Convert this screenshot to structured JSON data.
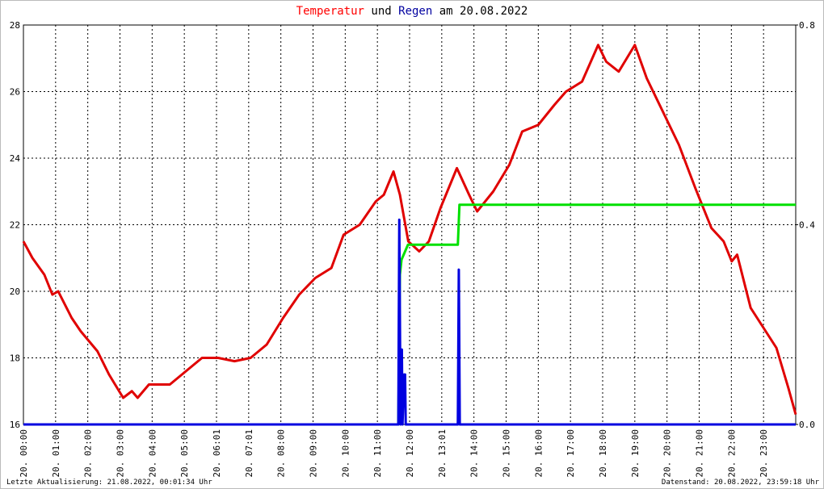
{
  "chart_data": {
    "type": "line",
    "title_parts": [
      {
        "text": "Temperatur",
        "color": "#ff0000"
      },
      {
        "text": "und",
        "color": "#000000"
      },
      {
        "text": "Regen",
        "color": "#0000a0"
      },
      {
        "text": "am 20.08.2022",
        "color": "#000000"
      }
    ],
    "footer_left": "Letzte Aktualisierung: 21.08.2022, 00:01:34 Uhr",
    "footer_right": "Datenstand: 20.08.2022, 23:59:18 Uhr",
    "xlim": [
      0,
      24
    ],
    "xticks": [
      {
        "value": 0,
        "label": "20. 00:00"
      },
      {
        "value": 1,
        "label": "20. 01:00"
      },
      {
        "value": 2,
        "label": "20. 02:00"
      },
      {
        "value": 3,
        "label": "20. 03:00"
      },
      {
        "value": 4,
        "label": "20. 04:00"
      },
      {
        "value": 5,
        "label": "20. 05:00"
      },
      {
        "value": 6,
        "label": "20. 06:01"
      },
      {
        "value": 7,
        "label": "20. 07:01"
      },
      {
        "value": 8,
        "label": "20. 08:00"
      },
      {
        "value": 9,
        "label": "20. 09:00"
      },
      {
        "value": 10,
        "label": "20. 10:00"
      },
      {
        "value": 11,
        "label": "20. 11:00"
      },
      {
        "value": 12,
        "label": "20. 12:00"
      },
      {
        "value": 13,
        "label": "20. 13:01"
      },
      {
        "value": 14,
        "label": "20. 14:00"
      },
      {
        "value": 15,
        "label": "20. 15:00"
      },
      {
        "value": 16,
        "label": "20. 16:00"
      },
      {
        "value": 17,
        "label": "20. 17:00"
      },
      {
        "value": 18,
        "label": "20. 18:00"
      },
      {
        "value": 19,
        "label": "20. 19:00"
      },
      {
        "value": 20,
        "label": "20. 20:00"
      },
      {
        "value": 21,
        "label": "20. 21:00"
      },
      {
        "value": 22,
        "label": "20. 22:00"
      },
      {
        "value": 23,
        "label": "20. 23:00"
      }
    ],
    "ylim": [
      16,
      28
    ],
    "yticks": [
      16,
      18,
      20,
      22,
      24,
      26,
      28
    ],
    "y2lim": [
      0,
      0.8
    ],
    "y2ticks": [
      {
        "value": 0,
        "label": "0.0"
      },
      0.4,
      0.8
    ],
    "grid": true,
    "series": [
      {
        "color": "#e00000",
        "axis": "y",
        "x": [
          0,
          0.28,
          0.65,
          0.9,
          1.08,
          1.5,
          1.78,
          2.3,
          2.66,
          3.1,
          3.37,
          3.55,
          3.9,
          4.55,
          5.05,
          5.55,
          6.05,
          6.56,
          7.06,
          7.56,
          8.07,
          8.57,
          9.07,
          9.57,
          9.95,
          10.45,
          10.95,
          11.2,
          11.5,
          11.7,
          11.96,
          12.3,
          12.6,
          12.96,
          13.47,
          13.85,
          14.1,
          14.6,
          15.1,
          15.5,
          16.0,
          16.5,
          16.86,
          17.36,
          17.86,
          18.11,
          18.5,
          19.0,
          19.37,
          19.87,
          20.37,
          20.88,
          21.38,
          21.76,
          22.01,
          22.18,
          22.6,
          23.0,
          23.4,
          23.77,
          24.0
        ],
        "values": [
          21.5,
          21.0,
          20.5,
          19.9,
          20.0,
          19.2,
          18.8,
          18.2,
          17.5,
          16.8,
          17.0,
          16.8,
          17.2,
          17.2,
          17.6,
          18.0,
          18.0,
          17.9,
          18.0,
          18.4,
          19.2,
          19.9,
          20.4,
          20.7,
          21.7,
          22.0,
          22.7,
          22.9,
          23.6,
          22.9,
          21.5,
          21.2,
          21.5,
          22.5,
          23.7,
          22.9,
          22.4,
          23.0,
          23.8,
          24.8,
          25.0,
          25.6,
          26.0,
          26.3,
          27.4,
          26.9,
          26.6,
          27.4,
          26.4,
          25.4,
          24.4,
          23.1,
          21.9,
          21.5,
          20.9,
          21.1,
          19.5,
          18.9,
          18.3,
          17.1,
          16.3
        ]
      },
      {
        "color": "#00e000",
        "axis": "y2",
        "x": [
          0,
          11.65,
          11.7,
          11.75,
          11.95,
          13.5,
          13.55,
          24
        ],
        "values": [
          0,
          0,
          0.3,
          0.33,
          0.36,
          0.36,
          0.44,
          0.44
        ]
      },
      {
        "color": "#0000e0",
        "axis": "y2",
        "x": [
          0,
          11.65,
          11.68,
          11.72,
          11.76,
          11.78,
          11.83,
          11.86,
          11.88,
          13.5,
          13.53,
          13.56,
          24
        ],
        "values": [
          0,
          0,
          0.41,
          0,
          0.15,
          0,
          0.1,
          0.1,
          0,
          0,
          0.31,
          0,
          0
        ]
      }
    ]
  }
}
